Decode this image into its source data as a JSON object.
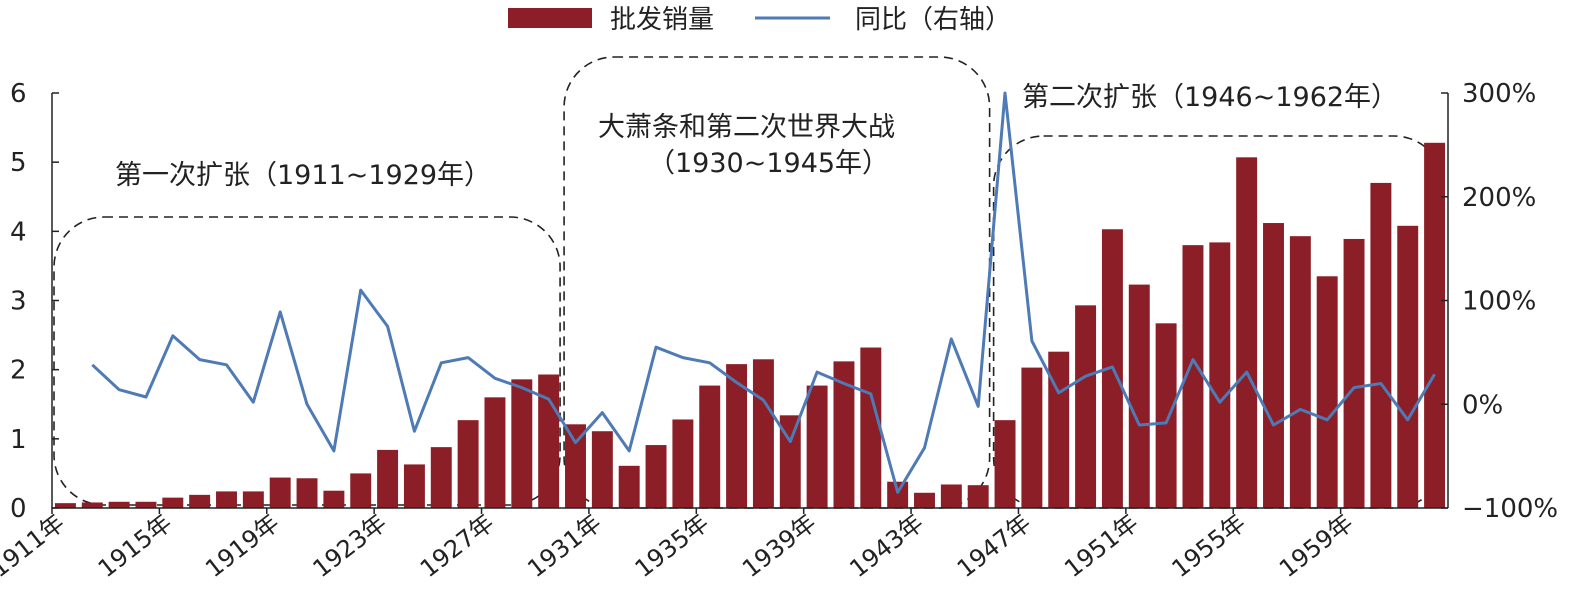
{
  "chart_data": {
    "type": "bar",
    "legend": {
      "placement": "top-center",
      "bar_label": "批发销量",
      "line_label": "同比（右轴）"
    },
    "colors": {
      "bar": "#8B1E26",
      "line": "#4E7AB5",
      "annotation_box": "#222222"
    },
    "x": [
      1911,
      1912,
      1913,
      1914,
      1915,
      1916,
      1917,
      1918,
      1919,
      1920,
      1921,
      1922,
      1923,
      1924,
      1925,
      1926,
      1927,
      1928,
      1929,
      1930,
      1931,
      1932,
      1933,
      1934,
      1935,
      1936,
      1937,
      1938,
      1939,
      1940,
      1941,
      1942,
      1943,
      1944,
      1945,
      1946,
      1947,
      1948,
      1949,
      1950,
      1951,
      1952,
      1953,
      1954,
      1955,
      1956,
      1957,
      1958,
      1959,
      1960,
      1961,
      1962
    ],
    "x_tick_labels": [
      "1911年",
      "1915年",
      "1919年",
      "1923年",
      "1927年",
      "1931年",
      "1935年",
      "1939年",
      "1943年",
      "1947年",
      "1951年",
      "1955年",
      "1959年"
    ],
    "x_tick_years": [
      1911,
      1915,
      1919,
      1923,
      1927,
      1931,
      1935,
      1939,
      1943,
      1947,
      1951,
      1955,
      1959
    ],
    "series": [
      {
        "name": "批发销量",
        "type": "bar",
        "axis": "left",
        "values": [
          0.07,
          0.08,
          0.09,
          0.09,
          0.15,
          0.19,
          0.24,
          0.24,
          0.44,
          0.43,
          0.25,
          0.5,
          0.84,
          0.63,
          0.88,
          1.27,
          1.6,
          1.86,
          1.93,
          1.21,
          1.11,
          0.61,
          0.91,
          1.28,
          1.77,
          2.08,
          2.15,
          1.34,
          1.77,
          2.12,
          2.32,
          0.38,
          0.22,
          0.34,
          0.33,
          1.27,
          2.03,
          2.26,
          2.93,
          4.03,
          3.23,
          2.67,
          3.8,
          3.84,
          5.07,
          4.12,
          3.93,
          3.35,
          3.89,
          4.7,
          4.08,
          5.28
        ]
      },
      {
        "name": "同比（右轴）",
        "type": "line",
        "axis": "right",
        "values": [
          null,
          38,
          14,
          7,
          66,
          43,
          38,
          2,
          89,
          0,
          -45,
          110,
          75,
          -26,
          40,
          45,
          25,
          16,
          5,
          -37,
          -8,
          -45,
          55,
          45,
          40,
          21,
          4,
          -36,
          31,
          20,
          10,
          -85,
          -42,
          63,
          -2,
          300,
          61,
          11,
          27,
          36,
          -20,
          -18,
          43,
          2,
          31,
          -20,
          -5,
          -15,
          16,
          20,
          -15,
          29
        ]
      }
    ],
    "ylim": [
      0,
      6
    ],
    "y_ticks": [
      0,
      1,
      2,
      3,
      4,
      5,
      6
    ],
    "y2lim": [
      -100,
      300
    ],
    "y2_ticks": [
      -100,
      0,
      100,
      200,
      300
    ],
    "y2_tick_labels": [
      "−100%",
      "0%",
      "100%",
      "200%",
      "300%"
    ],
    "grid": false,
    "annotations": [
      {
        "label": "第一次扩张（1911~1929年）",
        "x_range": [
          1911,
          1929
        ]
      },
      {
        "label": "大萧条和第二次世界大战",
        "label2": "（1930~1945年）",
        "x_range": [
          1930,
          1945
        ]
      },
      {
        "label": "第二次扩张（1946~1962年）",
        "x_range": [
          1946,
          1962
        ]
      }
    ]
  }
}
